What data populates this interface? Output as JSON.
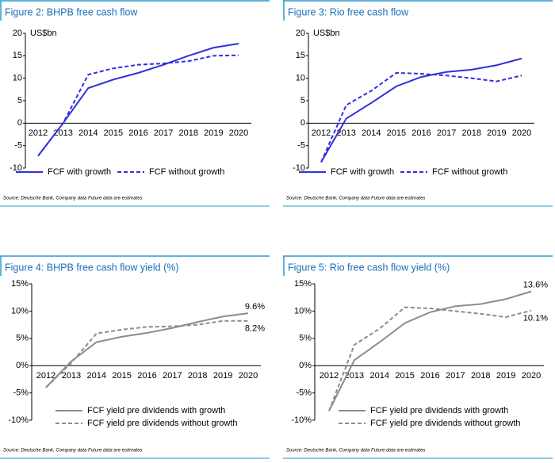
{
  "chart_data": [
    {
      "type": "line",
      "title": "Figure 2: BHPB free cash flow",
      "y_unit": "US$bn",
      "categories": [
        "2012",
        "2013",
        "2014",
        "2015",
        "2016",
        "2017",
        "2018",
        "2019",
        "2020"
      ],
      "series": [
        {
          "name": "FCF with growth",
          "color": "#3030dd",
          "dash": false,
          "values": [
            -7.3,
            0,
            7.8,
            9.7,
            11.2,
            13.0,
            15.0,
            16.8,
            17.7
          ]
        },
        {
          "name": "FCF without growth",
          "color": "#3030dd",
          "dash": true,
          "values": [
            -7.3,
            0,
            10.8,
            12.2,
            13.0,
            13.3,
            13.8,
            15.0,
            15.1
          ]
        }
      ],
      "ylim": [
        -10,
        20
      ],
      "yticks": [
        -10,
        -5,
        0,
        5,
        10,
        15,
        20
      ],
      "legend": "bottom",
      "source": "Source: Deutsche Bank, Company data   Future data are estimates"
    },
    {
      "type": "line",
      "title": "Figure 3: Rio free cash flow",
      "y_unit": "US$bn",
      "categories": [
        "2012",
        "2013",
        "2014",
        "2015",
        "2016",
        "2017",
        "2018",
        "2019",
        "2020"
      ],
      "series": [
        {
          "name": "FCF with growth",
          "color": "#3030dd",
          "dash": false,
          "values": [
            -8.7,
            1.0,
            4.5,
            8.2,
            10.3,
            11.4,
            11.9,
            12.9,
            14.4
          ]
        },
        {
          "name": "FCF without growth",
          "color": "#3030dd",
          "dash": true,
          "values": [
            -8.7,
            4.0,
            7.2,
            11.2,
            11.0,
            10.6,
            10.0,
            9.3,
            10.6
          ]
        }
      ],
      "ylim": [
        -10,
        20
      ],
      "yticks": [
        -10,
        -5,
        0,
        5,
        10,
        15,
        20
      ],
      "legend": "bottom",
      "source": "Source: Deutsche Bank, Company data   Future data are estimates"
    },
    {
      "type": "line",
      "title": "Figure 4: BHPB free cash flow yield (%)",
      "categories": [
        "2012",
        "2013",
        "2014",
        "2015",
        "2016",
        "2017",
        "2018",
        "2019",
        "2020"
      ],
      "series": [
        {
          "name": "FCF yield pre dividends with growth",
          "color": "#8c8c8c",
          "dash": false,
          "values": [
            -4.0,
            0.8,
            4.3,
            5.3,
            6.0,
            6.9,
            8.0,
            9.0,
            9.6
          ],
          "value_labels": [
            null,
            null,
            null,
            null,
            null,
            null,
            null,
            null,
            "9.6%"
          ]
        },
        {
          "name": "FCF yield pre dividends without growth",
          "color": "#8c8c8c",
          "dash": true,
          "values": [
            -4.0,
            0.5,
            5.9,
            6.6,
            7.1,
            7.2,
            7.5,
            8.2,
            8.2
          ],
          "value_labels": [
            null,
            null,
            null,
            null,
            null,
            null,
            null,
            null,
            "8.2%"
          ]
        }
      ],
      "ylim": [
        -10,
        15
      ],
      "yticks": [
        {
          "value": -10,
          "label": "-10%"
        },
        {
          "value": -5,
          "label": "-5%"
        },
        {
          "value": 0,
          "label": "0%"
        },
        {
          "value": 5,
          "label": "5%"
        },
        {
          "value": 10,
          "label": "10%"
        },
        {
          "value": 15,
          "label": "15%"
        }
      ],
      "legend": "bottom",
      "source": "Source: Deutsche Bank, Company data   Future data are estimates"
    },
    {
      "type": "line",
      "title": "Figure 5: Rio free cash flow yield (%)",
      "categories": [
        "2012",
        "2013",
        "2014",
        "2015",
        "2016",
        "2017",
        "2018",
        "2019",
        "2020"
      ],
      "series": [
        {
          "name": "FCF yield pre dividends with growth",
          "color": "#8c8c8c",
          "dash": false,
          "values": [
            -8.3,
            1.0,
            4.3,
            7.8,
            9.8,
            10.9,
            11.3,
            12.2,
            13.6
          ],
          "value_labels": [
            null,
            null,
            null,
            null,
            null,
            null,
            null,
            null,
            "13.6%"
          ]
        },
        {
          "name": "FCF yield pre dividends without growth",
          "color": "#8c8c8c",
          "dash": true,
          "values": [
            -8.3,
            3.8,
            6.8,
            10.7,
            10.5,
            10.0,
            9.5,
            8.9,
            10.1
          ],
          "value_labels": [
            null,
            null,
            null,
            null,
            null,
            null,
            null,
            null,
            "10.1%"
          ]
        }
      ],
      "ylim": [
        -10,
        15
      ],
      "yticks": [
        {
          "value": -10,
          "label": "-10%"
        },
        {
          "value": -5,
          "label": "-5%"
        },
        {
          "value": 0,
          "label": "0%"
        },
        {
          "value": 5,
          "label": "5%"
        },
        {
          "value": 10,
          "label": "10%"
        },
        {
          "value": 15,
          "label": "15%"
        }
      ],
      "legend": "bottom",
      "source": "Source: Deutsche Bank, Company data   Future data are estimates"
    }
  ]
}
